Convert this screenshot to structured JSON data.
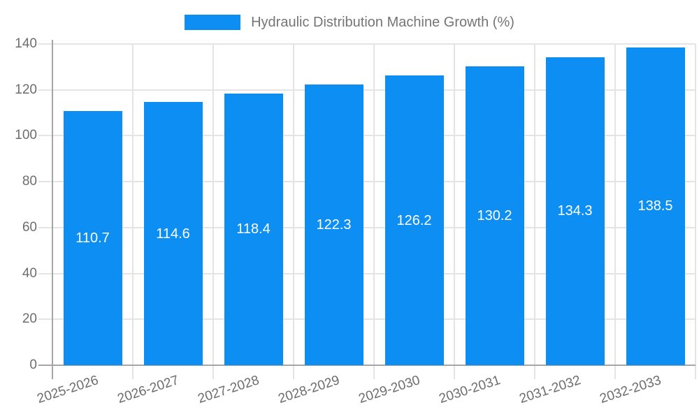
{
  "chart_data": {
    "type": "bar",
    "title": "Hydraulic Distribution Machine Growth (%)",
    "legend_position": "top",
    "categories": [
      "2025-2026",
      "2026-2027",
      "2027-2028",
      "2028-2029",
      "2029-2030",
      "2030-2031",
      "2031-2032",
      "2032-2033"
    ],
    "series": [
      {
        "name": "Hydraulic Distribution Machine Growth (%)",
        "values": [
          110.7,
          114.6,
          118.4,
          122.3,
          126.2,
          130.2,
          134.3,
          138.5
        ]
      }
    ],
    "value_label_decimals": 1,
    "xlabel": "",
    "ylabel": "",
    "ylim": [
      0,
      140
    ],
    "yticks": [
      0,
      20,
      40,
      60,
      80,
      100,
      120,
      140
    ],
    "grid": true,
    "x_label_rotation_deg": -18,
    "colors": {
      "bar": "#0D8EF3",
      "value_label": "#FFFFFF",
      "axis_text": "#6D6D6D",
      "legend_text": "#757575",
      "gridline": "#E4E4E4",
      "axis_line": "#A6A6A6",
      "background": "#FFFFFF"
    }
  }
}
